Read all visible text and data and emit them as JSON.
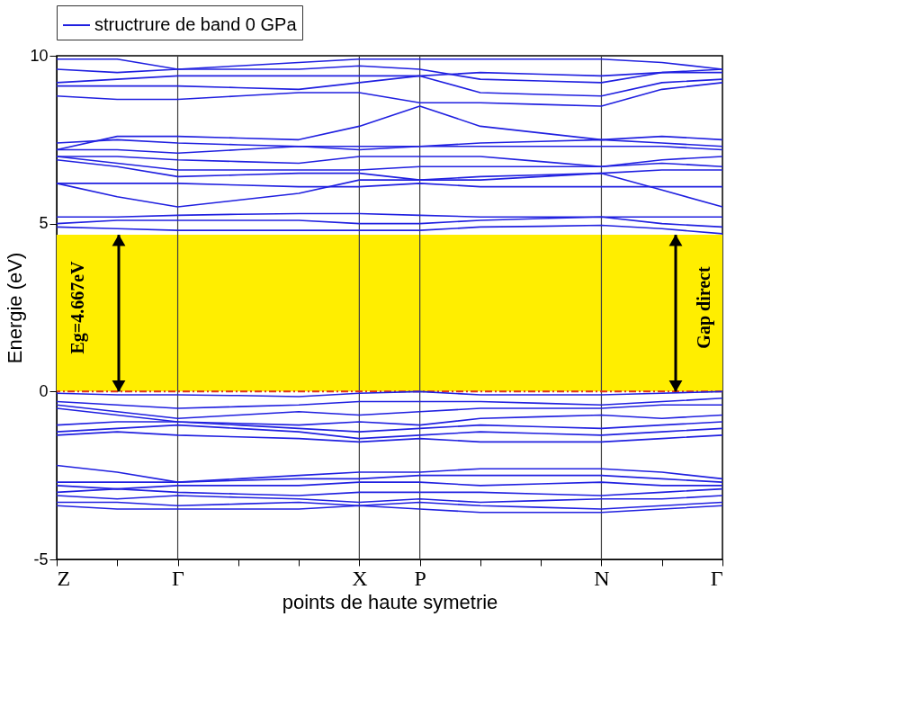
{
  "chart_data": {
    "type": "line",
    "xlabel": "points de haute symetrie",
    "ylabel": "Energie (eV)",
    "categories": [
      "Z",
      null,
      "Γ",
      null,
      null,
      "X",
      "P",
      null,
      null,
      "N",
      null,
      "Γ"
    ],
    "ylim": [
      -5,
      10
    ],
    "yticks": [
      -5,
      0,
      5,
      10
    ],
    "grid": "x",
    "legend": "top",
    "line_style": "solid",
    "series": [
      {
        "name": "structrure de band 0 GPa",
        "color": "#2020e0",
        "values": [
          -0.05,
          -0.1,
          -0.1,
          -0.12,
          -0.15,
          -0.05,
          0,
          -0.1,
          -0.1,
          -0.1,
          -0.05,
          0
        ]
      },
      {
        "color": "#2020e0",
        "values": [
          -0.3,
          -0.4,
          -0.5,
          -0.45,
          -0.4,
          -0.3,
          -0.3,
          -0.3,
          -0.35,
          -0.4,
          -0.3,
          -0.2
        ]
      },
      {
        "color": "#2020e0",
        "values": [
          -0.4,
          -0.6,
          -0.8,
          -0.7,
          -0.6,
          -0.7,
          -0.6,
          -0.5,
          -0.5,
          -0.5,
          -0.4,
          -0.4
        ]
      },
      {
        "color": "#2020e0",
        "values": [
          -0.5,
          -0.7,
          -0.9,
          -0.95,
          -1.0,
          -0.9,
          -1.0,
          -0.8,
          -0.75,
          -0.7,
          -0.8,
          -0.7
        ]
      },
      {
        "color": "#2020e0",
        "values": [
          -1.0,
          -0.9,
          -0.9,
          -1.0,
          -1.1,
          -1.2,
          -1.1,
          -1.0,
          -1.05,
          -1.1,
          -1.0,
          -0.9
        ]
      },
      {
        "color": "#2020e0",
        "values": [
          -1.2,
          -1.1,
          -1.0,
          -1.1,
          -1.2,
          -1.4,
          -1.3,
          -1.2,
          -1.25,
          -1.3,
          -1.2,
          -1.1
        ]
      },
      {
        "color": "#2020e0",
        "values": [
          -1.3,
          -1.2,
          -1.3,
          -1.35,
          -1.4,
          -1.5,
          -1.4,
          -1.5,
          -1.5,
          -1.5,
          -1.4,
          -1.3
        ]
      },
      {
        "color": "#2020e0",
        "values": [
          -2.2,
          -2.4,
          -2.7,
          -2.6,
          -2.5,
          -2.4,
          -2.4,
          -2.3,
          -2.3,
          -2.3,
          -2.4,
          -2.6
        ]
      },
      {
        "color": "#2020e0",
        "values": [
          -2.7,
          -2.7,
          -2.7,
          -2.65,
          -2.6,
          -2.6,
          -2.5,
          -2.5,
          -2.5,
          -2.5,
          -2.6,
          -2.7
        ]
      },
      {
        "color": "#2020e0",
        "values": [
          -2.8,
          -2.9,
          -2.8,
          -2.8,
          -2.8,
          -2.7,
          -2.7,
          -2.8,
          -2.75,
          -2.7,
          -2.8,
          -2.8
        ]
      },
      {
        "color": "#2020e0",
        "values": [
          -3.0,
          -2.9,
          -3.0,
          -3.05,
          -3.1,
          -3.0,
          -3.0,
          -3.0,
          -3.05,
          -3.1,
          -3.0,
          -2.9
        ]
      },
      {
        "color": "#2020e0",
        "values": [
          -3.1,
          -3.2,
          -3.1,
          -3.15,
          -3.2,
          -3.3,
          -3.2,
          -3.3,
          -3.25,
          -3.2,
          -3.2,
          -3.1
        ]
      },
      {
        "color": "#2020e0",
        "values": [
          -3.3,
          -3.3,
          -3.4,
          -3.35,
          -3.3,
          -3.4,
          -3.3,
          -3.4,
          -3.45,
          -3.5,
          -3.4,
          -3.3
        ]
      },
      {
        "color": "#2020e0",
        "values": [
          -3.4,
          -3.5,
          -3.5,
          -3.5,
          -3.5,
          -3.4,
          -3.5,
          -3.6,
          -3.6,
          -3.6,
          -3.5,
          -3.4
        ]
      },
      {
        "color": "#2020e0",
        "values": [
          4.9,
          4.85,
          4.8,
          4.8,
          4.8,
          4.8,
          4.8,
          4.9,
          4.92,
          4.95,
          4.85,
          4.7
        ]
      },
      {
        "color": "#2020e0",
        "values": [
          5.0,
          5.1,
          5.1,
          5.1,
          5.1,
          5.0,
          5.0,
          5.1,
          5.15,
          5.2,
          5.0,
          4.9
        ]
      },
      {
        "color": "#2020e0",
        "values": [
          5.2,
          5.2,
          5.25,
          5.28,
          5.3,
          5.3,
          5.25,
          5.2,
          5.2,
          5.2,
          5.2,
          5.2
        ]
      },
      {
        "color": "#2020e0",
        "values": [
          6.2,
          5.8,
          5.5,
          5.7,
          5.9,
          6.3,
          6.3,
          6.4,
          6.45,
          6.5,
          6.0,
          5.5
        ]
      },
      {
        "color": "#2020e0",
        "values": [
          6.2,
          6.2,
          6.2,
          6.15,
          6.1,
          6.1,
          6.2,
          6.1,
          6.1,
          6.1,
          6.1,
          6.1
        ]
      },
      {
        "color": "#2020e0",
        "values": [
          6.9,
          6.7,
          6.4,
          6.45,
          6.5,
          6.5,
          6.3,
          6.3,
          6.4,
          6.5,
          6.6,
          6.6
        ]
      },
      {
        "color": "#2020e0",
        "values": [
          7.0,
          6.8,
          6.6,
          6.6,
          6.6,
          6.6,
          6.7,
          6.7,
          6.7,
          6.7,
          6.8,
          6.7
        ]
      },
      {
        "color": "#2020e0",
        "values": [
          7.0,
          7.0,
          6.9,
          6.85,
          6.8,
          7.0,
          7.0,
          7.0,
          6.85,
          6.7,
          6.9,
          7.0
        ]
      },
      {
        "color": "#2020e0",
        "values": [
          7.2,
          7.2,
          7.1,
          7.2,
          7.3,
          7.2,
          7.3,
          7.3,
          7.3,
          7.3,
          7.3,
          7.2
        ]
      },
      {
        "color": "#2020e0",
        "values": [
          7.4,
          7.5,
          7.4,
          7.35,
          7.3,
          7.3,
          7.3,
          7.4,
          7.45,
          7.5,
          7.4,
          7.3
        ]
      },
      {
        "color": "#2020e0",
        "values": [
          7.2,
          7.6,
          7.6,
          7.55,
          7.5,
          7.9,
          8.5,
          7.9,
          7.7,
          7.5,
          7.6,
          7.5
        ]
      },
      {
        "color": "#2020e0",
        "values": [
          8.8,
          8.7,
          8.7,
          8.8,
          8.9,
          8.9,
          8.6,
          8.6,
          8.55,
          8.5,
          9.0,
          9.2
        ]
      },
      {
        "color": "#2020e0",
        "values": [
          9.1,
          9.1,
          9.1,
          9.05,
          9.0,
          9.2,
          9.4,
          8.9,
          8.85,
          8.8,
          9.2,
          9.3
        ]
      },
      {
        "color": "#2020e0",
        "values": [
          9.2,
          9.3,
          9.4,
          9.4,
          9.4,
          9.4,
          9.4,
          9.5,
          9.45,
          9.4,
          9.5,
          9.5
        ]
      },
      {
        "color": "#2020e0",
        "values": [
          9.6,
          9.5,
          9.6,
          9.6,
          9.6,
          9.7,
          9.6,
          9.3,
          9.25,
          9.2,
          9.5,
          9.6
        ]
      },
      {
        "color": "#2020e0",
        "values": [
          9.9,
          9.9,
          9.6,
          9.7,
          9.8,
          9.9,
          9.9,
          9.9,
          9.9,
          9.9,
          9.8,
          9.6
        ]
      }
    ],
    "bands": [
      {
        "axis": "y",
        "from": 0,
        "to": 4.667,
        "color": "#ffee00"
      }
    ],
    "ref_lines": [
      {
        "axis": "y",
        "value": 0,
        "color": "#e03020",
        "line_style": "dashed"
      }
    ],
    "annotations": [
      "Eg=4.667eV",
      "Gap direct"
    ]
  }
}
